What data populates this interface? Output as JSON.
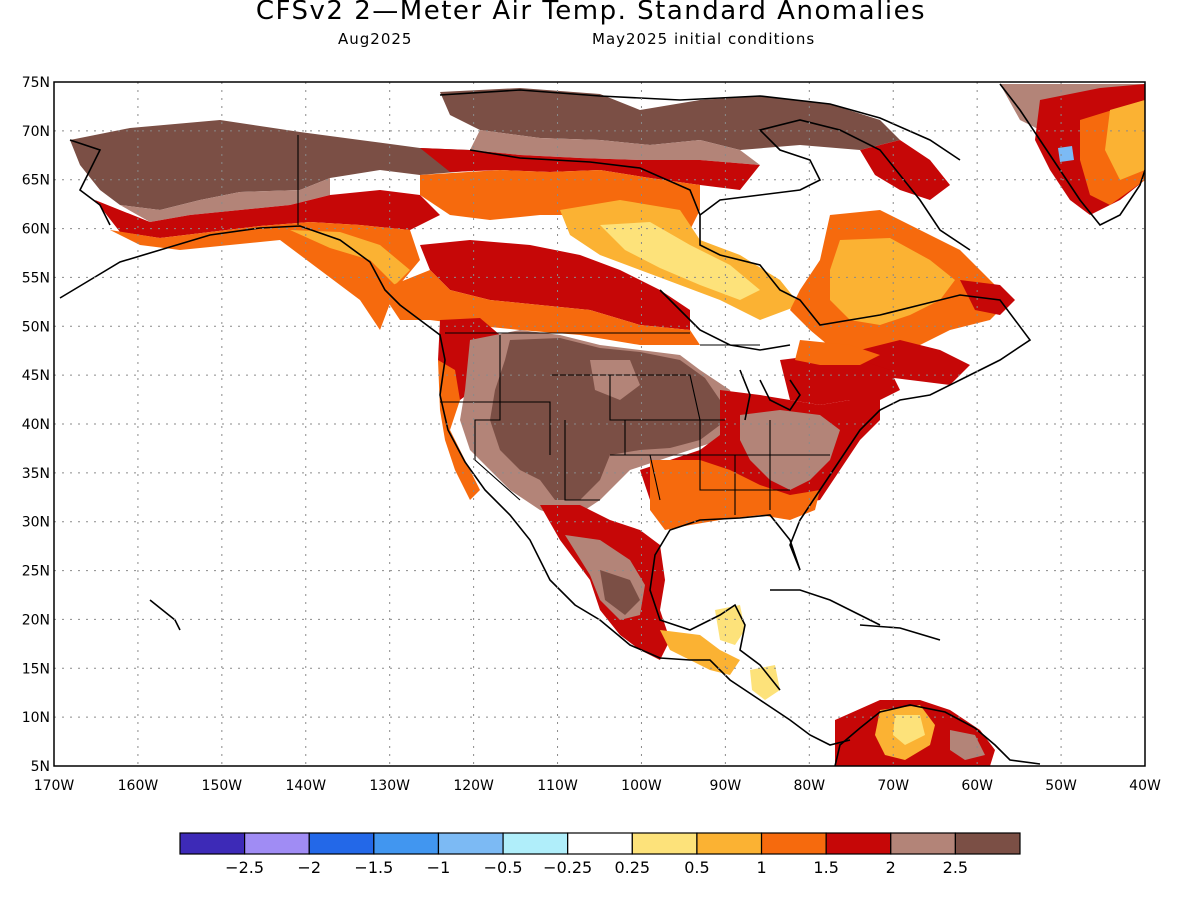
{
  "header": {
    "title": "CFSv2 2—Meter Air Temp. Standard Anomalies",
    "valid_month": "Aug2025",
    "initial_conditions": "May2025 initial conditions"
  },
  "map": {
    "lat_ticks": [
      "75N",
      "70N",
      "65N",
      "60N",
      "55N",
      "50N",
      "45N",
      "40N",
      "35N",
      "30N",
      "25N",
      "20N",
      "15N",
      "10N",
      "5N"
    ],
    "lon_ticks": [
      "170W",
      "160W",
      "150W",
      "140W",
      "130W",
      "120W",
      "110W",
      "100W",
      "90W",
      "80W",
      "70W",
      "60W",
      "50W",
      "40W"
    ],
    "ocean_color": "#ffffff",
    "grid": "dotted"
  },
  "colorbar": {
    "colors": [
      "#3d2ab7",
      "#a08cf4",
      "#2368e8",
      "#4196f0",
      "#7cbaf4",
      "#b0eefa",
      "#ffffff",
      "#fde27a",
      "#fbb233",
      "#f66a0d",
      "#c60707",
      "#b38478",
      "#7b4f45"
    ],
    "labels": [
      "−2.5",
      "−2",
      "−1.5",
      "−1",
      "−0.5",
      "−0.25",
      "0.25",
      "0.5",
      "1",
      "1.5",
      "2",
      "2.5"
    ]
  }
}
